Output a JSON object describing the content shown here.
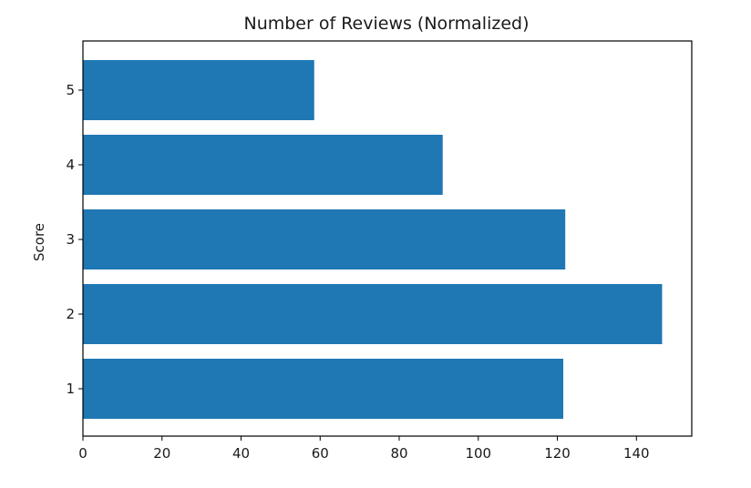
{
  "chart_data": {
    "type": "bar",
    "orientation": "horizontal",
    "title": "Number of Reviews (Normalized)",
    "xlabel": "",
    "ylabel": "Score",
    "categories": [
      "1",
      "2",
      "3",
      "4",
      "5"
    ],
    "values": [
      121.5,
      146.5,
      122,
      91,
      58.5
    ],
    "xlim": [
      0,
      154
    ],
    "x_ticks": [
      0,
      20,
      40,
      60,
      80,
      100,
      120,
      140
    ],
    "grid": false,
    "legend": "none",
    "colors": {
      "bar": "#1f77b4",
      "axis": "#000000",
      "text": "#1a1a1a"
    }
  }
}
